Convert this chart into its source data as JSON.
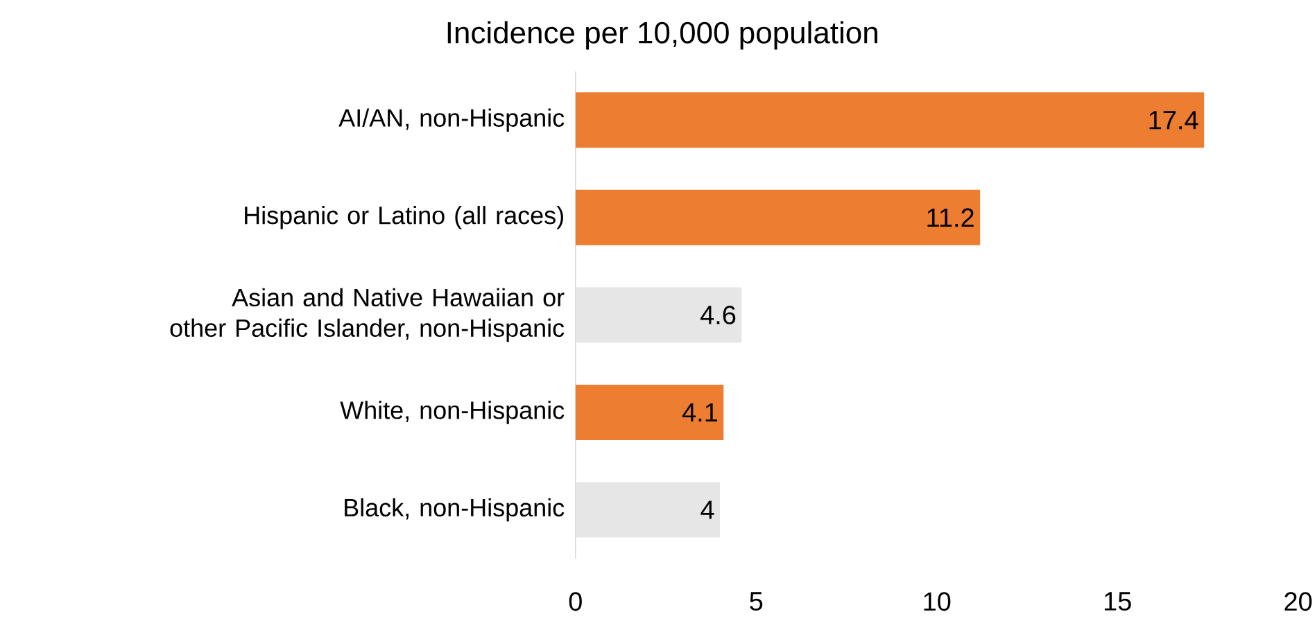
{
  "chart_data": {
    "type": "bar",
    "orientation": "horizontal",
    "title": "Incidence per 10,000 population",
    "categories": [
      "AI/AN, non-Hispanic",
      "Hispanic or Latino (all races)",
      "Asian and Native Hawaiian or other Pacific Islander, non-Hispanic",
      "White, non-Hispanic",
      "Black, non-Hispanic"
    ],
    "values": [
      17.4,
      11.2,
      4.6,
      4.1,
      4
    ],
    "colors": [
      "#ed7d31",
      "#ed7d31",
      "#e7e6e6",
      "#ed7d31",
      "#e7e6e6"
    ],
    "xlim": [
      0,
      20
    ],
    "xticks": [
      0,
      5,
      10,
      15,
      20
    ],
    "data_labels": true
  }
}
